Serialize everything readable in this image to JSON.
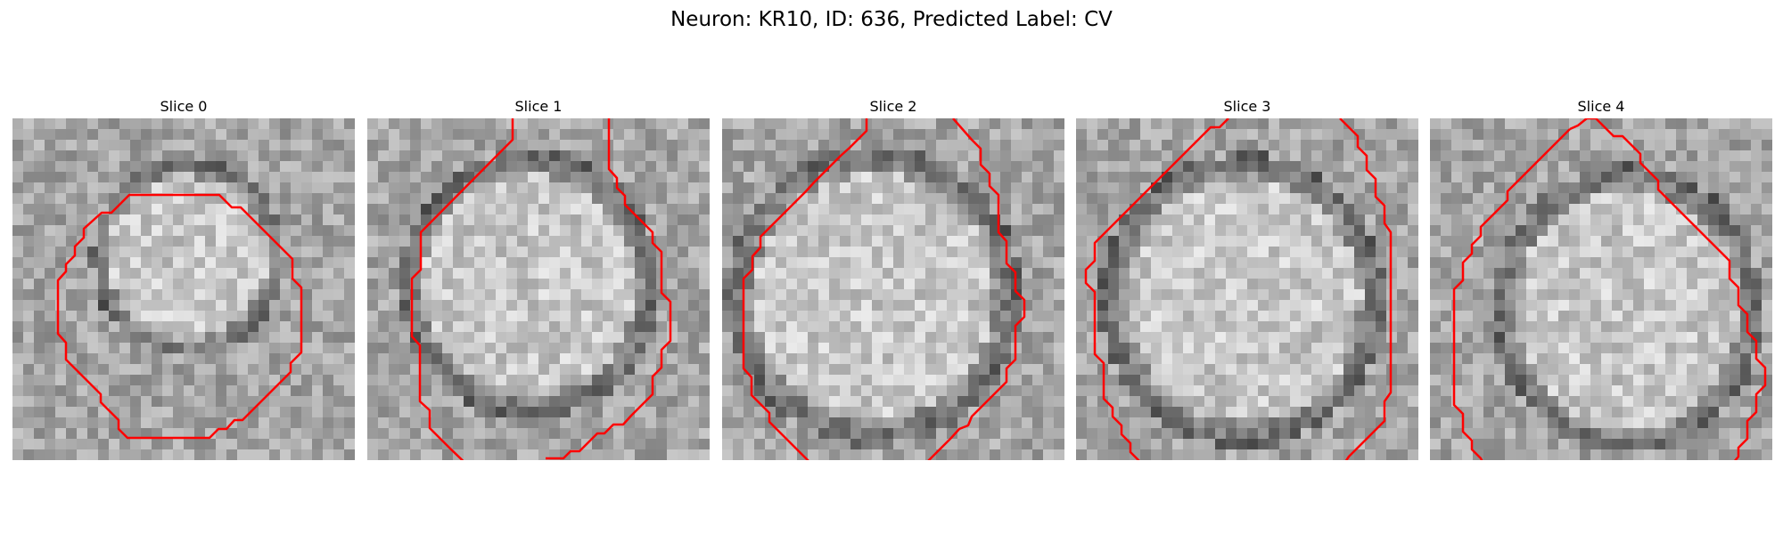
{
  "figure": {
    "title": "Neuron: KR10, ID: 636, Predicted Label: CV"
  },
  "panels": [
    {
      "title": "Slice 0"
    },
    {
      "title": "Slice 1"
    },
    {
      "title": "Slice 2"
    },
    {
      "title": "Slice 3"
    },
    {
      "title": "Slice 4"
    }
  ],
  "image_style": {
    "colormap": "grayscale",
    "outline_color": "#ff0000"
  }
}
